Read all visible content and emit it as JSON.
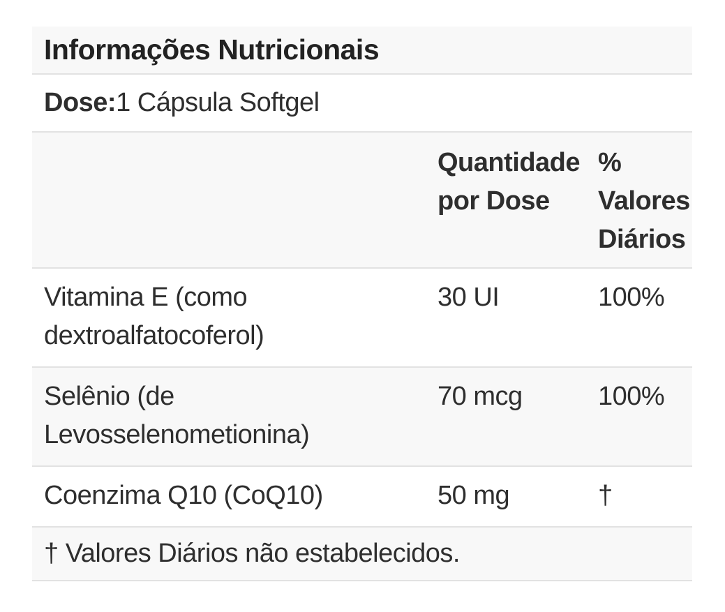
{
  "nutrition_table": {
    "title": "Informações Nutricionais",
    "dose": {
      "label": "Dose:",
      "value": "1 Cápsula Softgel"
    },
    "columns": {
      "nutrient": "",
      "amount_per_serving": "Quantidade por Dose",
      "percent_daily_value": "% Valores Diários"
    },
    "rows": [
      {
        "name": "Vitamina E (como dextroalfatocoferol)",
        "amount": "30 UI",
        "dv": "100%"
      },
      {
        "name": "Selênio (de Levosselenometionina)",
        "amount": "70 mcg",
        "dv": "100%"
      },
      {
        "name": "Coenzima Q10 (CoQ10)",
        "amount": "50 mg",
        "dv": "†"
      }
    ],
    "footnote": "† Valores Diários não estabelecidos.",
    "colors": {
      "band_gray": "#f8f8f8",
      "divider": "#e2e2e2",
      "text": "#2e2e2e",
      "background": "#ffffff"
    }
  }
}
